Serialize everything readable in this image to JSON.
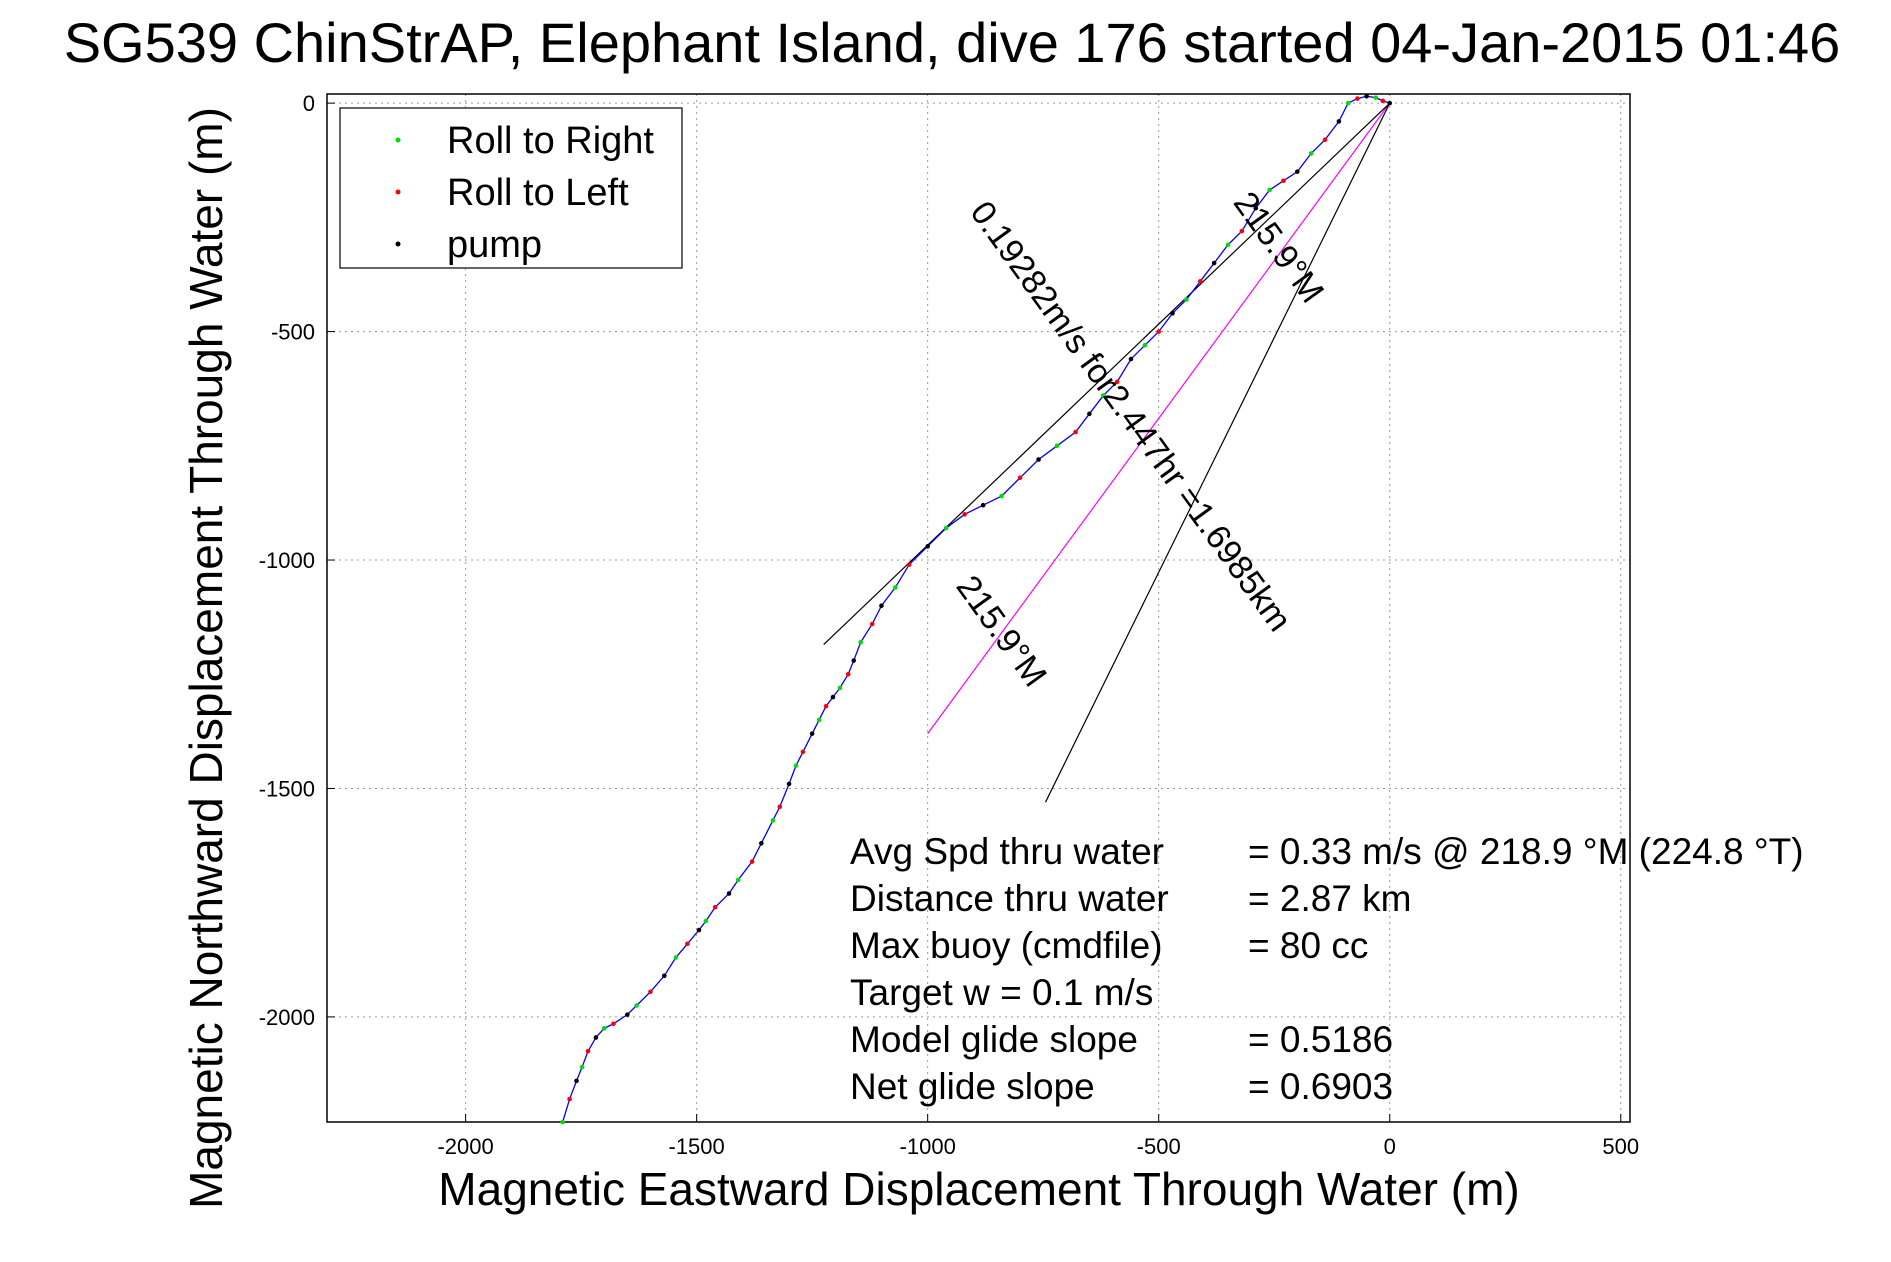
{
  "chart_data": {
    "type": "line",
    "title": "SG539 ChinStrAP, Elephant Island, dive 176 started 04-Jan-2015 01:46",
    "xlabel": "Magnetic Eastward Displacement Through Water (m)",
    "ylabel": "Magnetic Northward Displacement Through Water (m)",
    "xlim": [
      -2300,
      520
    ],
    "ylim": [
      -2230,
      20
    ],
    "xticks": [
      -2000,
      -1500,
      -1000,
      -500,
      0,
      500
    ],
    "yticks": [
      0,
      -500,
      -1000,
      -1500,
      -2000
    ],
    "grid": true,
    "legend_position": "top-left",
    "legend": [
      {
        "label": "Roll to Right",
        "color": "#00dd00"
      },
      {
        "label": "Roll to Left",
        "color": "#ff0000"
      },
      {
        "label": "pump",
        "color": "#000000"
      }
    ],
    "track": {
      "color": "#0000ff",
      "x": [
        -1790,
        -1775,
        -1760,
        -1748,
        -1735,
        -1718,
        -1700,
        -1680,
        -1650,
        -1630,
        -1600,
        -1570,
        -1545,
        -1520,
        -1495,
        -1480,
        -1460,
        -1430,
        -1410,
        -1380,
        -1360,
        -1335,
        -1320,
        -1300,
        -1285,
        -1270,
        -1250,
        -1235,
        -1220,
        -1205,
        -1190,
        -1172,
        -1160,
        -1145,
        -1120,
        -1100,
        -1070,
        -1040,
        -1000,
        -960,
        -920,
        -880,
        -840,
        -800,
        -760,
        -720,
        -680,
        -650,
        -620,
        -590,
        -560,
        -530,
        -500,
        -470,
        -440,
        -410,
        -380,
        -350,
        -320,
        -290,
        -260,
        -230,
        -200,
        -170,
        -140,
        -110,
        -90,
        -70,
        -50,
        -30,
        -15,
        0
      ],
      "y": [
        -2230,
        -2180,
        -2140,
        -2110,
        -2075,
        -2045,
        -2025,
        -2015,
        -1995,
        -1975,
        -1945,
        -1910,
        -1870,
        -1840,
        -1810,
        -1790,
        -1760,
        -1730,
        -1700,
        -1660,
        -1620,
        -1570,
        -1540,
        -1490,
        -1450,
        -1420,
        -1380,
        -1350,
        -1320,
        -1300,
        -1280,
        -1250,
        -1220,
        -1180,
        -1140,
        -1100,
        -1060,
        -1010,
        -970,
        -930,
        -900,
        -880,
        -860,
        -820,
        -780,
        -750,
        -720,
        -680,
        -640,
        -610,
        -560,
        -530,
        -500,
        -460,
        -430,
        -390,
        -350,
        -310,
        -280,
        -230,
        -190,
        -170,
        -150,
        -110,
        -80,
        -40,
        0,
        10,
        15,
        12,
        5,
        0
      ]
    },
    "reference_lines": [
      {
        "name": "net",
        "color": "#ff00ff",
        "x": [
          0,
          -1000
        ],
        "y": [
          0,
          -1380
        ]
      },
      {
        "name": "wedge-1",
        "color": "#000000",
        "x": [
          0,
          -1225
        ],
        "y": [
          0,
          -1185
        ]
      },
      {
        "name": "wedge-2",
        "color": "#000000",
        "x": [
          0,
          -745
        ],
        "y": [
          0,
          -1530
        ]
      }
    ],
    "annotations": [
      {
        "text": "0.19282m/s for2.447hr =1.6985km",
        "x": -580,
        "y": -700,
        "rotation": 54.1
      },
      {
        "text": "215.9°M",
        "x": -260,
        "y": -330,
        "rotation": 54.1
      },
      {
        "text": "215.9°M",
        "x": -860,
        "y": -1170,
        "rotation": 54.1
      }
    ],
    "stats": [
      {
        "label": "Avg Spd thru water",
        "value": "=  0.33 m/s @ 218.9 °M (224.8 °T)"
      },
      {
        "label": "Distance thru water",
        "value": "=  2.87 km"
      },
      {
        "label": "Max buoy (cmdfile)",
        "value": "= 80 cc"
      },
      {
        "label": "Target w    = 0.1 m/s",
        "value": ""
      },
      {
        "label": "Model glide slope",
        "value": "= 0.5186"
      },
      {
        "label": "Net glide slope",
        "value": "= 0.6903"
      }
    ]
  }
}
